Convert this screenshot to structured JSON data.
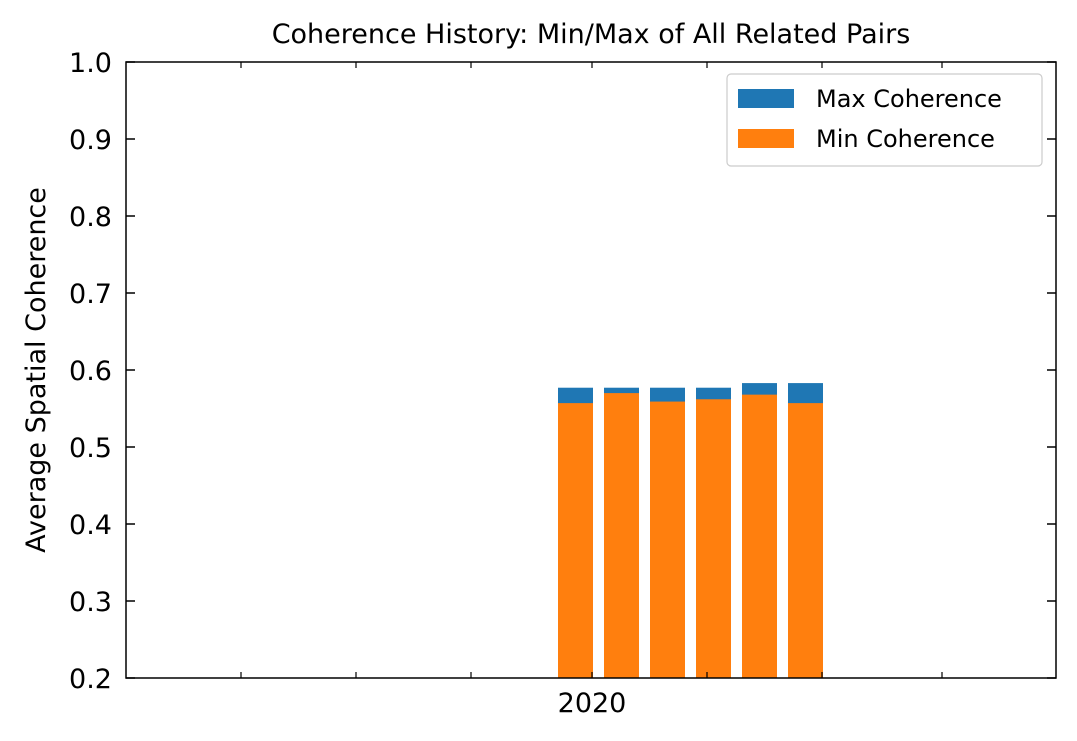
{
  "chart_data": {
    "type": "bar",
    "title": "Coherence History: Min/Max of All Related Pairs",
    "xlabel": "",
    "ylabel": "Average Spatial Coherence",
    "ylim": [
      0.2,
      1.0
    ],
    "yticks": [
      "0.2",
      "0.3",
      "0.4",
      "0.5",
      "0.6",
      "0.7",
      "0.8",
      "0.9",
      "1.0"
    ],
    "xticks": [
      "2020"
    ],
    "grid": false,
    "legend_position": "top-right",
    "series": [
      {
        "name": "Max Coherence",
        "color": "#1f77b4",
        "values": [
          0.577,
          0.577,
          0.577,
          0.577,
          0.583,
          0.583
        ]
      },
      {
        "name": "Min Coherence",
        "color": "#ff7f0e",
        "values": [
          0.557,
          0.57,
          0.559,
          0.562,
          0.568,
          0.557
        ]
      }
    ]
  }
}
